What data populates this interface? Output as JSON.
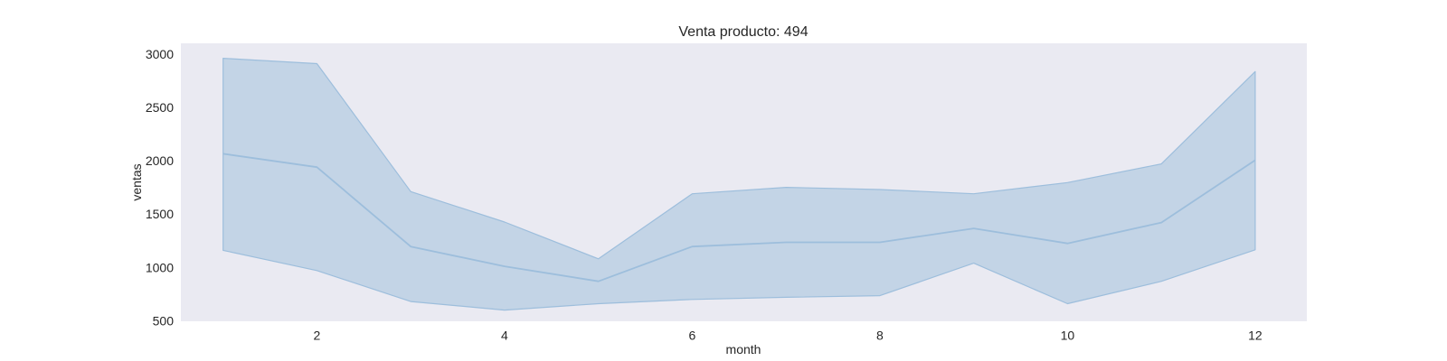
{
  "chart_data": {
    "type": "area",
    "title": "Venta producto: 494",
    "xlabel": "month",
    "ylabel": "ventas",
    "xlim": [
      0.55,
      12.55
    ],
    "ylim": [
      495,
      3100
    ],
    "xticks": [
      2,
      4,
      6,
      8,
      10,
      12
    ],
    "yticks": [
      500,
      1000,
      1500,
      2000,
      2500,
      3000
    ],
    "grid": false,
    "x": [
      1,
      2,
      3,
      4,
      5,
      6,
      7,
      8,
      9,
      10,
      11,
      12
    ],
    "series": [
      {
        "values": [
          2065,
          1940,
          1195,
          1010,
          870,
          1195,
          1235,
          1235,
          1365,
          1225,
          1420,
          2005
        ],
        "lower": [
          1160,
          970,
          680,
          600,
          660,
          700,
          720,
          735,
          1040,
          660,
          870,
          1165
        ],
        "upper": [
          2960,
          2910,
          1710,
          1425,
          1080,
          1690,
          1750,
          1730,
          1690,
          1795,
          1970,
          2835
        ],
        "color": "#1f77b4"
      }
    ],
    "colors": {
      "plot_background": "#eaeaf2",
      "band_fill": "#a8c4de",
      "line": "#9dbedc",
      "text": "#262626"
    }
  }
}
